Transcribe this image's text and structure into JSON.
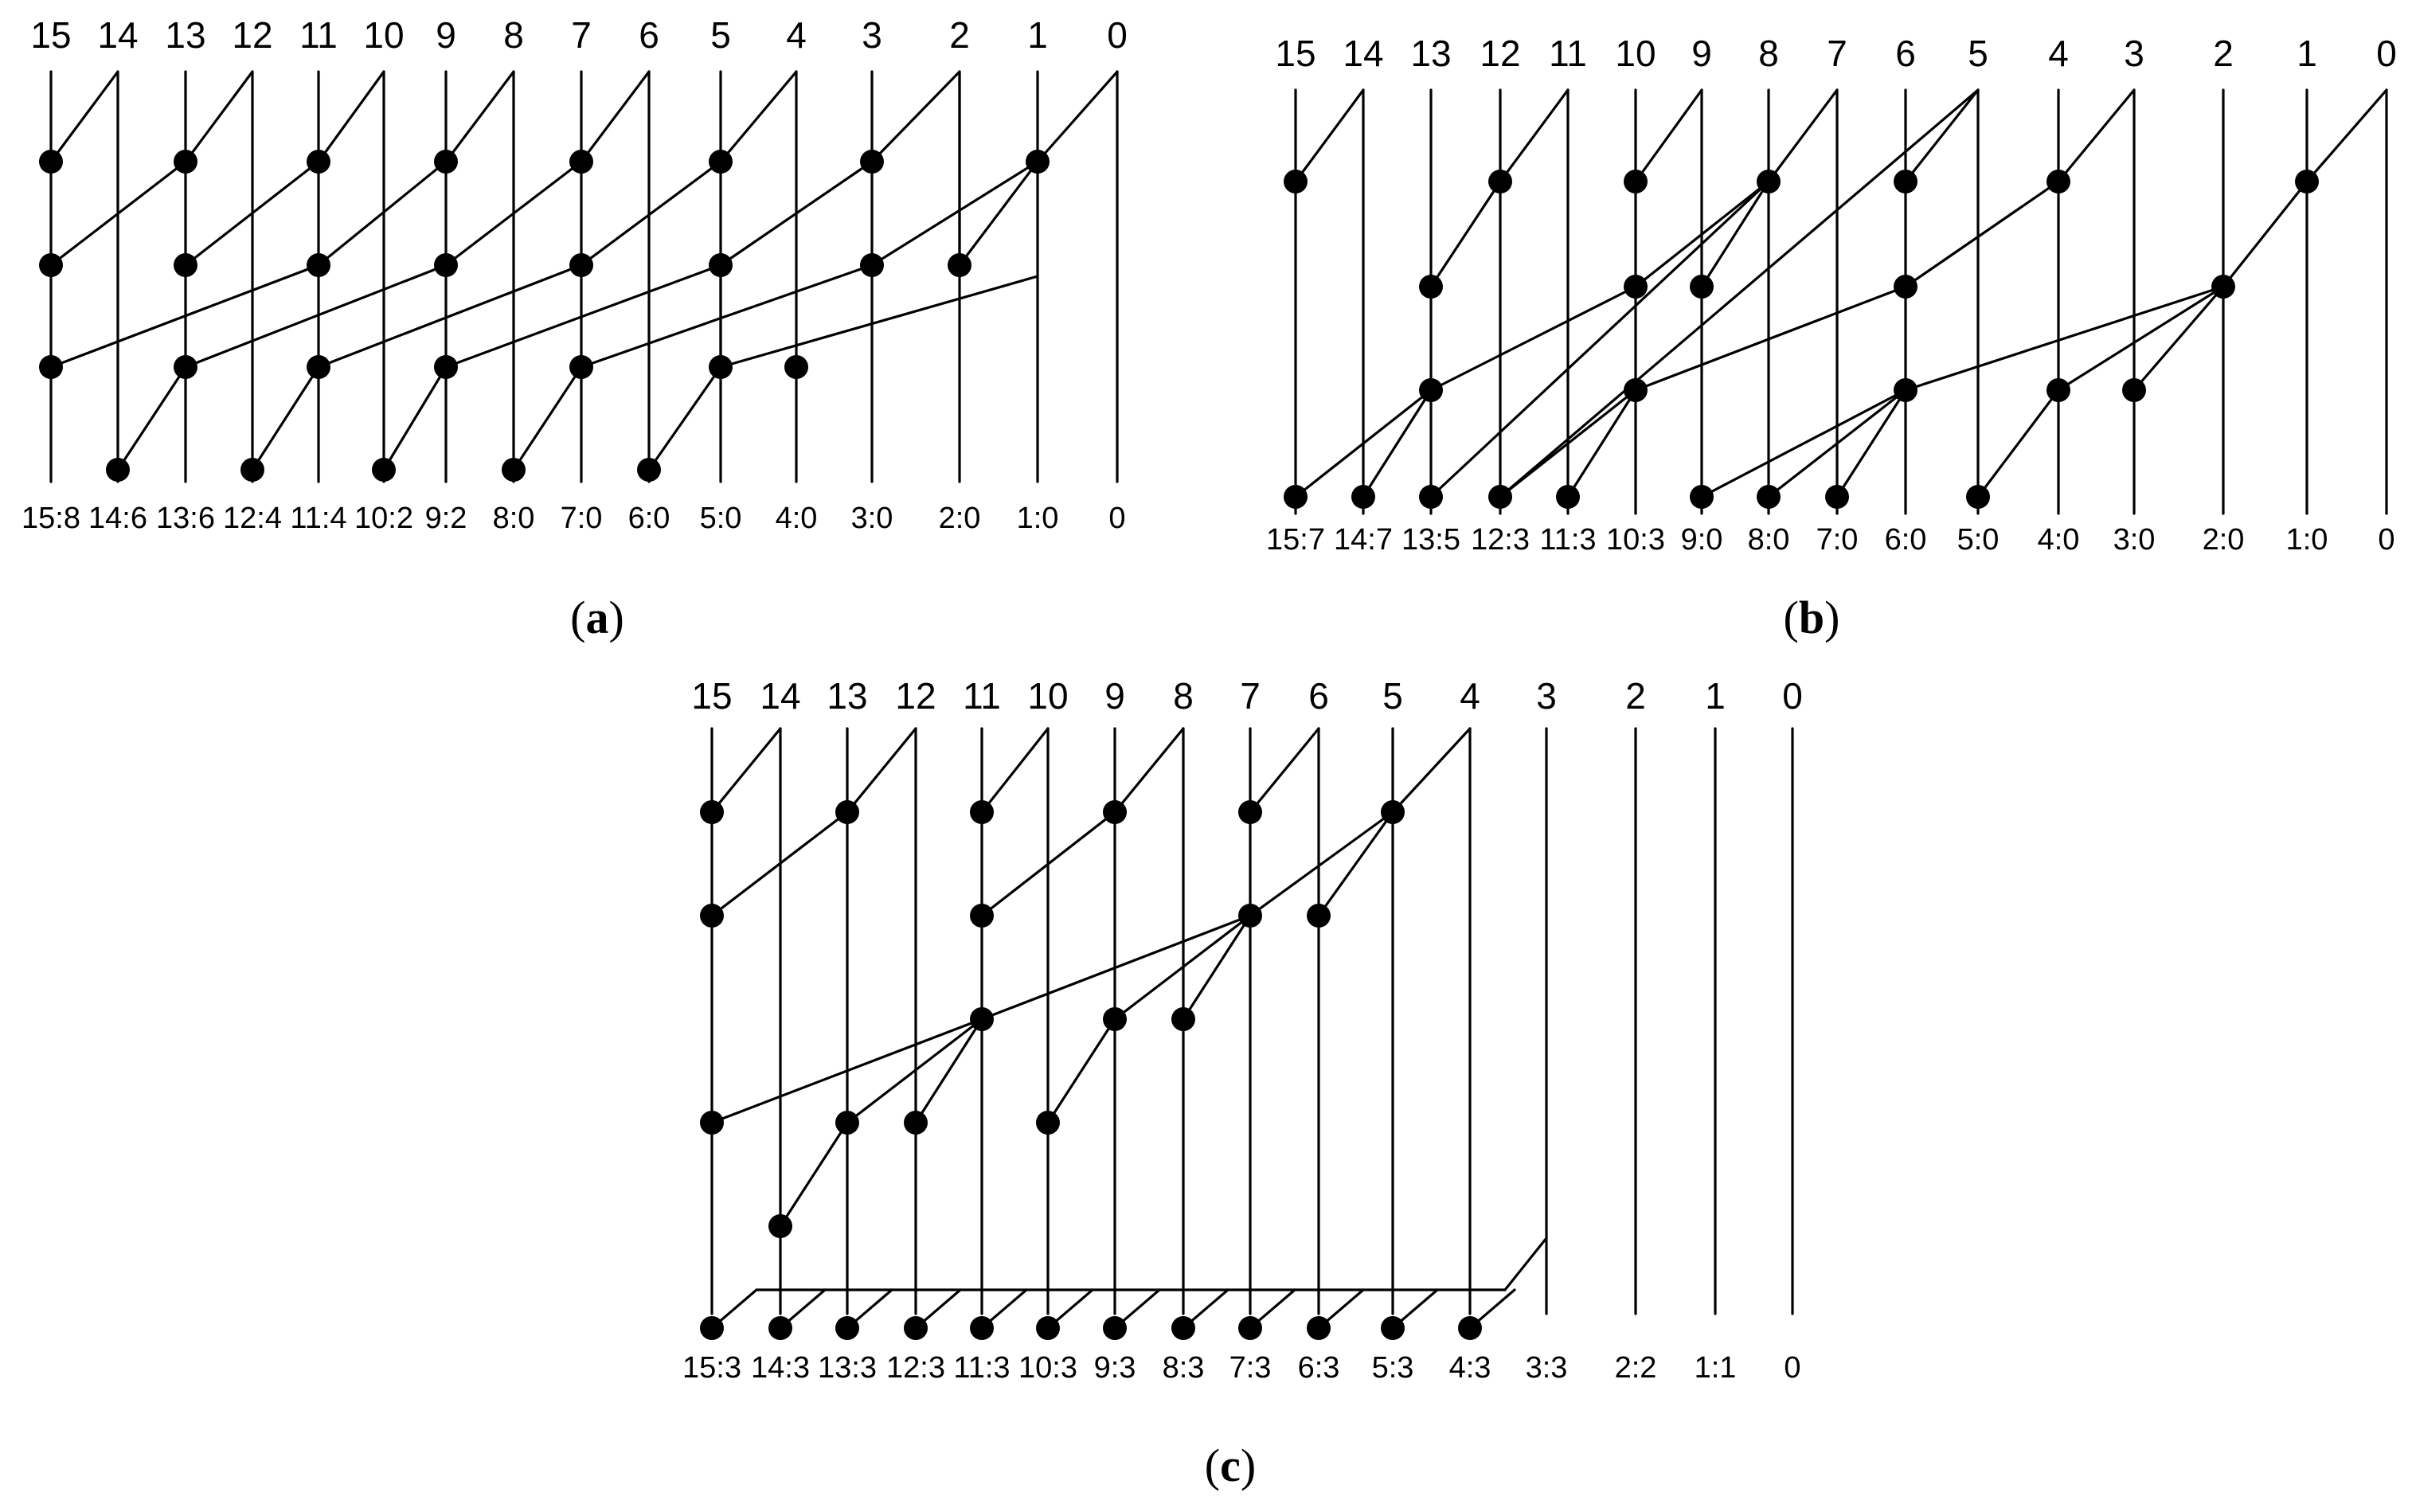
{
  "diagrams": [
    {
      "id": "a",
      "caption_letter": "a",
      "top_labels": [
        "15",
        "14",
        "13",
        "12",
        "11",
        "10",
        "9",
        "8",
        "7",
        "6",
        "5",
        "4",
        "3",
        "2",
        "1",
        "0"
      ],
      "bottom_labels": [
        "15:8",
        "14:6",
        "13:6",
        "12:4",
        "11:4",
        "10:2",
        "9:2",
        "8:0",
        "7:0",
        "6:0",
        "5:0",
        "4:0",
        "3:0",
        "2:0",
        "1:0",
        "0"
      ]
    },
    {
      "id": "b",
      "caption_letter": "b",
      "top_labels": [
        "15",
        "14",
        "13",
        "12",
        "11",
        "10",
        "9",
        "8",
        "7",
        "6",
        "5",
        "4",
        "3",
        "2",
        "1",
        "0"
      ],
      "bottom_labels": [
        "15:7",
        "14:7",
        "13:5",
        "12:3",
        "11:3",
        "10:3",
        "9:0",
        "8:0",
        "7:0",
        "6:0",
        "5:0",
        "4:0",
        "3:0",
        "2:0",
        "1:0",
        "0"
      ]
    },
    {
      "id": "c",
      "caption_letter": "c",
      "top_labels": [
        "15",
        "14",
        "13",
        "12",
        "11",
        "10",
        "9",
        "8",
        "7",
        "6",
        "5",
        "4",
        "3",
        "2",
        "1",
        "0"
      ],
      "bottom_labels": [
        "15:3",
        "14:3",
        "13:3",
        "12:3",
        "11:3",
        "10:3",
        "9:3",
        "8:3",
        "7:3",
        "6:3",
        "5:3",
        "4:3",
        "3:3",
        "2:2",
        "1:1",
        "0"
      ]
    }
  ]
}
